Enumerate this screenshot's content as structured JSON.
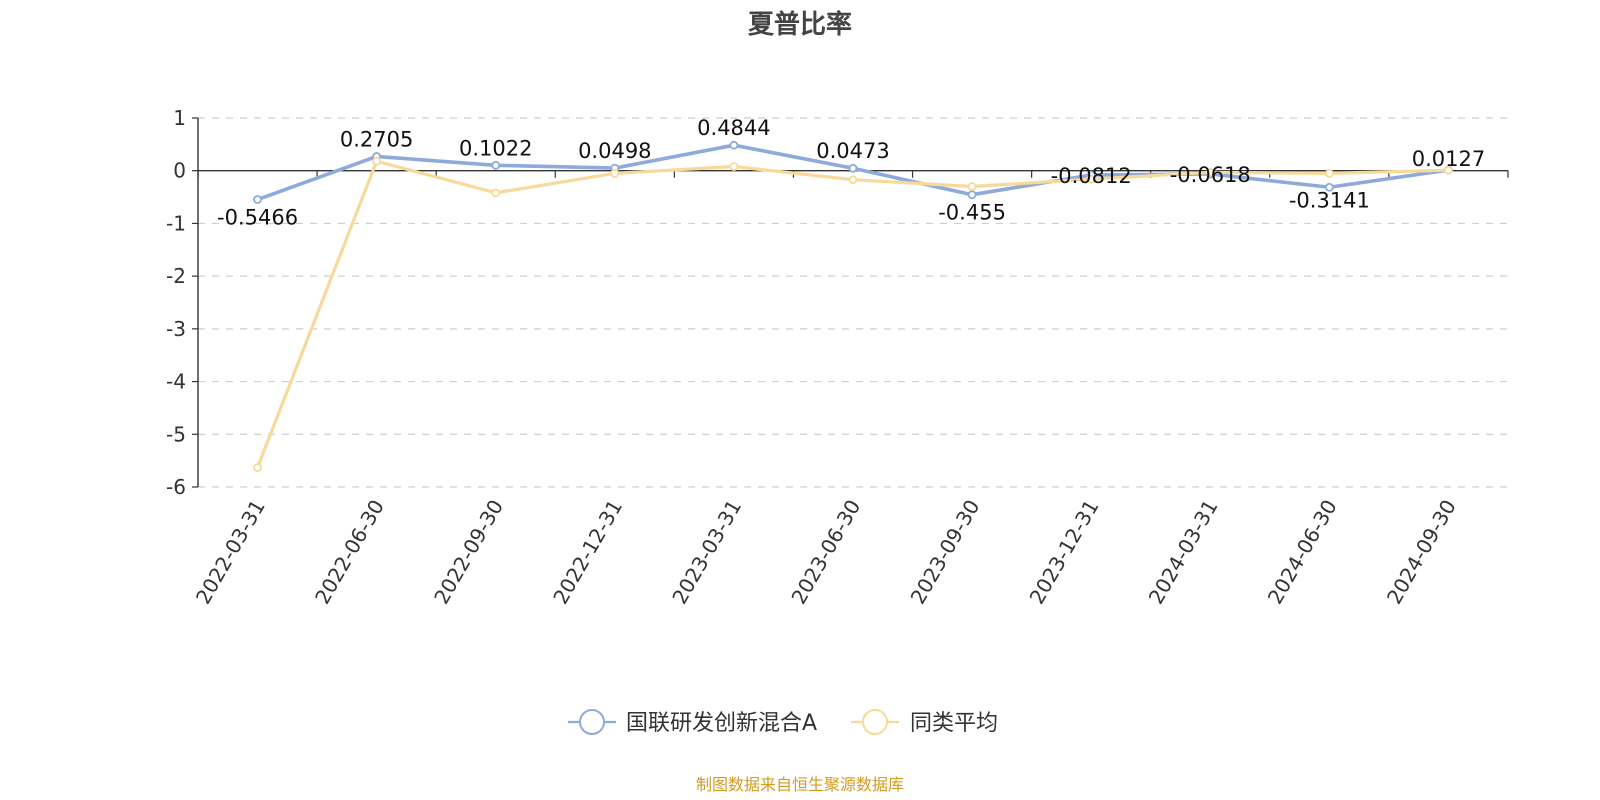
{
  "chart_data": {
    "type": "line",
    "title": "夏普比率",
    "categories": [
      "2022-03-31",
      "2022-06-30",
      "2022-09-30",
      "2022-12-31",
      "2023-03-31",
      "2023-06-30",
      "2023-09-30",
      "2023-12-31",
      "2024-03-31",
      "2024-06-30",
      "2024-09-30"
    ],
    "series": [
      {
        "name": "国联研发创新混合A",
        "color": "#8eaadb",
        "values": [
          -0.5466,
          0.2705,
          0.1022,
          0.0498,
          0.4844,
          0.0473,
          -0.455,
          -0.0812,
          -0.0618,
          -0.3141,
          0.0127
        ],
        "labels": [
          "-0.5466",
          "0.2705",
          "0.1022",
          "0.0498",
          "0.4844",
          "0.0473",
          "-0.455",
          "-0.0812",
          "-0.0618",
          "-0.3141",
          "0.0127"
        ]
      },
      {
        "name": "同类平均",
        "color": "#f7d99a",
        "values": [
          -5.63,
          0.18,
          -0.42,
          -0.05,
          0.08,
          -0.17,
          -0.3,
          -0.16,
          -0.03,
          -0.05,
          0.01
        ]
      }
    ],
    "yticks": [
      "1",
      "0",
      "-1",
      "-2",
      "-3",
      "-4",
      "-5",
      "-6"
    ],
    "ylim": [
      -6,
      1
    ],
    "grid": true,
    "legend_position": "bottom-center",
    "source": "制图数据来自恒生聚源数据库"
  }
}
